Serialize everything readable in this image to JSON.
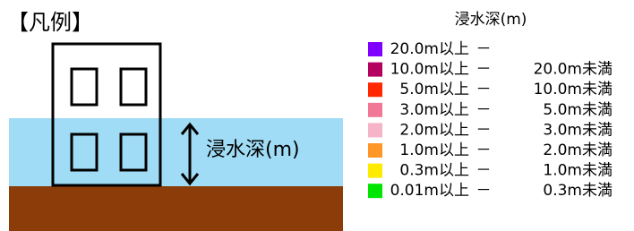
{
  "diagram": {
    "title": "【凡例】",
    "depth_label": "浸水深(m)"
  },
  "legend": {
    "title": "浸水深(m)",
    "items": [
      {
        "color": "#8000ff",
        "from": "20.0m以上",
        "sep": "－"
      },
      {
        "color": "#b4005f",
        "from": "10.0m以上",
        "sep": "－",
        "to": "20.0m未満"
      },
      {
        "color": "#ff2800",
        "from": "5.0m以上",
        "sep": "－",
        "to": "10.0m未満"
      },
      {
        "color": "#f07896",
        "from": "3.0m以上",
        "sep": "－",
        "to": "5.0m未満"
      },
      {
        "color": "#f5b4c8",
        "from": "2.0m以上",
        "sep": "－",
        "to": "3.0m未満"
      },
      {
        "color": "#ff9628",
        "from": "1.0m以上",
        "sep": "－",
        "to": "2.0m未満"
      },
      {
        "color": "#ffeb00",
        "from": "0.3m以上",
        "sep": "－",
        "to": "1.0m未満"
      },
      {
        "color": "#00e600",
        "from": "0.01m以上",
        "sep": "－",
        "to": "0.3m未満"
      }
    ]
  }
}
